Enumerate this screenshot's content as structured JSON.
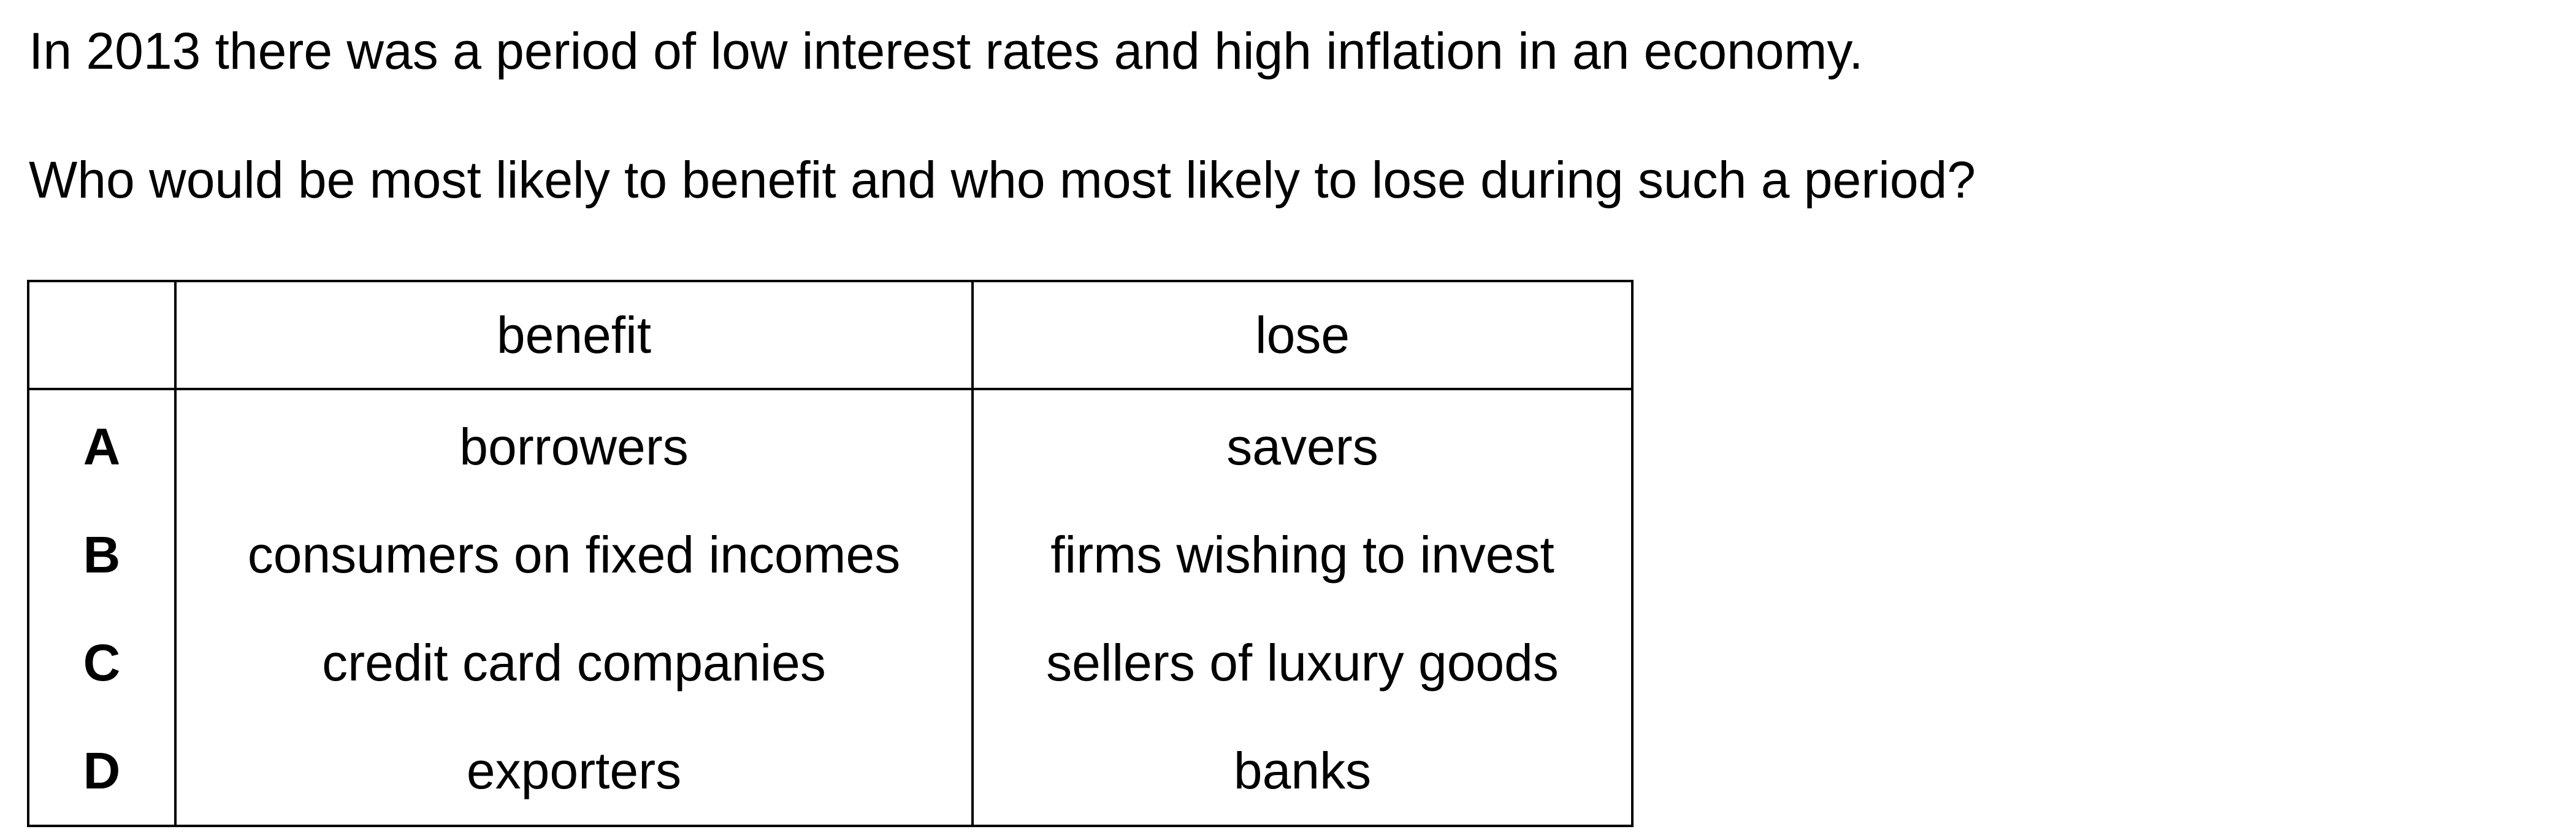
{
  "question": {
    "stem_line_1": "In 2013 there was a period of low interest rates and high inflation in an economy.",
    "stem_line_2": "Who would be most likely to benefit and who most likely to lose during such a period?"
  },
  "table": {
    "headers": [
      "",
      "benefit",
      "lose"
    ],
    "rows": [
      {
        "letter": "A",
        "benefit": "borrowers",
        "lose": "savers"
      },
      {
        "letter": "B",
        "benefit": "consumers on fixed incomes",
        "lose": "firms wishing to invest"
      },
      {
        "letter": "C",
        "benefit": "credit card companies",
        "lose": "sellers of luxury goods"
      },
      {
        "letter": "D",
        "benefit": "exporters",
        "lose": "banks"
      }
    ]
  }
}
